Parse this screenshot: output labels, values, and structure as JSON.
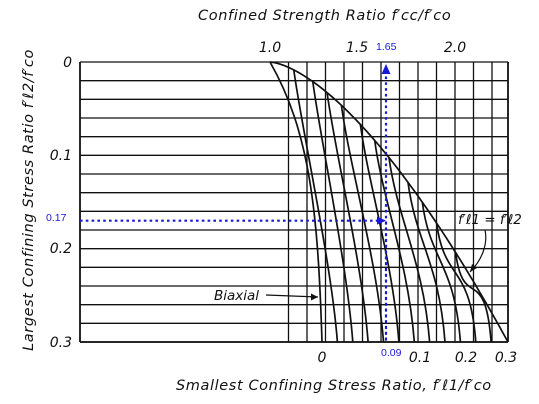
{
  "chart_data": {
    "type": "line",
    "title": "",
    "top_axis": {
      "title": "Confined Strength Ratio  f′cc/f′co",
      "tick_labels": [
        "1.0",
        "1.5",
        "2.0"
      ],
      "ticks": [
        1.0,
        1.5,
        2.0
      ]
    },
    "bottom_axis": {
      "title": "Smallest Confining Stress Ratio, f′ℓ1/f′co",
      "tick_labels": [
        "0",
        "0.1",
        "0.2",
        "0.3"
      ],
      "ticks": [
        0,
        0.1,
        0.2,
        0.3
      ],
      "xlim": [
        -0.3,
        0.3
      ]
    },
    "left_axis": {
      "title": "Largest Confining Stress Ratio  f′ℓ2/f′co",
      "tick_labels": [
        "0",
        "0.1",
        "0.2",
        "0.3"
      ],
      "ticks": [
        0,
        0.1,
        0.2,
        0.3
      ],
      "ylim": [
        0,
        0.3
      ],
      "inverted": true
    },
    "fan_curves": {
      "x_at_bottom": [
        0,
        0.025,
        0.05,
        0.075,
        0.1,
        0.125,
        0.15,
        0.175,
        0.2,
        0.225,
        0.25,
        0.275
      ],
      "start_x": 0.3
    },
    "annotations": {
      "biaxial": "Biaxial",
      "equal_label": "f′ℓ1 = f′ℓ2",
      "blue_y": "0.17",
      "blue_x": "0.09",
      "blue_ratio": "1.65"
    },
    "example": {
      "y": 0.17,
      "x": 0.09,
      "ratio": 1.65
    },
    "grid": true,
    "colors": {
      "ink": "#111111",
      "annotation": "#1a1ad6"
    }
  }
}
